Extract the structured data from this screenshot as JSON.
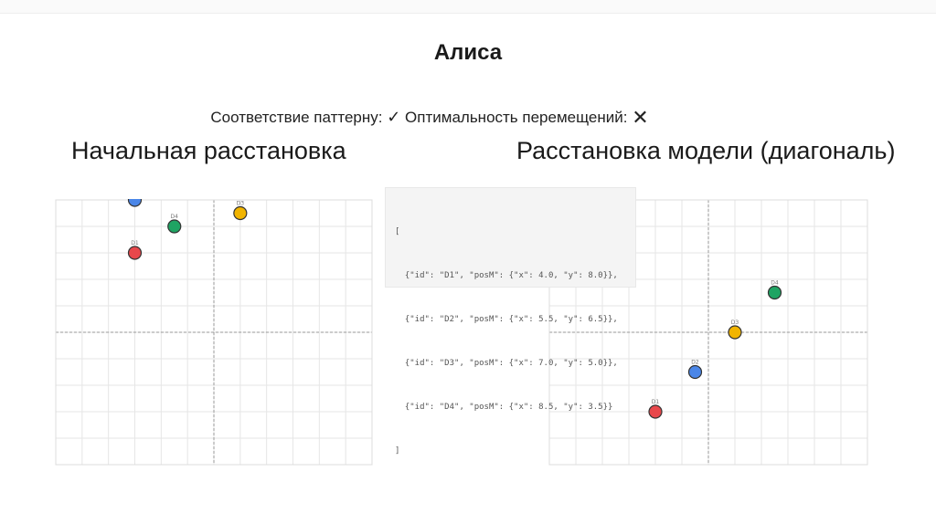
{
  "slide": {
    "title": "Алиса",
    "status": {
      "pattern_label": "Соответствие паттерну:",
      "pattern_mark": "✓",
      "optimality_label": "Оптимальность перемещений:",
      "optimality_mark": "✕"
    },
    "left_heading": "Начальная расстановка",
    "right_heading": "Расстановка модели (диагональ)",
    "code_lines": [
      "[",
      "  {\"id\": \"D1\", \"posM\": {\"x\": 4.0, \"y\": 8.0}},",
      "  {\"id\": \"D2\", \"posM\": {\"x\": 5.5, \"y\": 6.5}},",
      "  {\"id\": \"D3\", \"posM\": {\"x\": 7.0, \"y\": 5.0}},",
      "  {\"id\": \"D4\", \"posM\": {\"x\": 8.5, \"y\": 3.5}}",
      "]"
    ]
  },
  "colors": {
    "D1": "#e8474b",
    "D2": "#4a86e8",
    "D3": "#f1b400",
    "D4": "#1fa463",
    "grid": "#e6e6e6",
    "axis": "#9a9a9a"
  },
  "chart_data": [
    {
      "type": "scatter",
      "title": "Начальная расстановка",
      "xlim": [
        0,
        12
      ],
      "ylim": [
        0,
        10
      ],
      "grid": true,
      "points": [
        {
          "id": "D1",
          "x": 3.0,
          "y": 2.0
        },
        {
          "id": "D2",
          "x": 3.0,
          "y": 0.0
        },
        {
          "id": "D3",
          "x": 7.0,
          "y": 0.5
        },
        {
          "id": "D4",
          "x": 4.5,
          "y": 1.0
        }
      ]
    },
    {
      "type": "scatter",
      "title": "Расстановка модели (диагональ)",
      "xlim": [
        0,
        12
      ],
      "ylim": [
        0,
        10
      ],
      "grid": true,
      "points": [
        {
          "id": "D1",
          "x": 4.0,
          "y": 8.0
        },
        {
          "id": "D2",
          "x": 5.5,
          "y": 6.5
        },
        {
          "id": "D3",
          "x": 7.0,
          "y": 5.0
        },
        {
          "id": "D4",
          "x": 8.5,
          "y": 3.5
        }
      ]
    }
  ]
}
